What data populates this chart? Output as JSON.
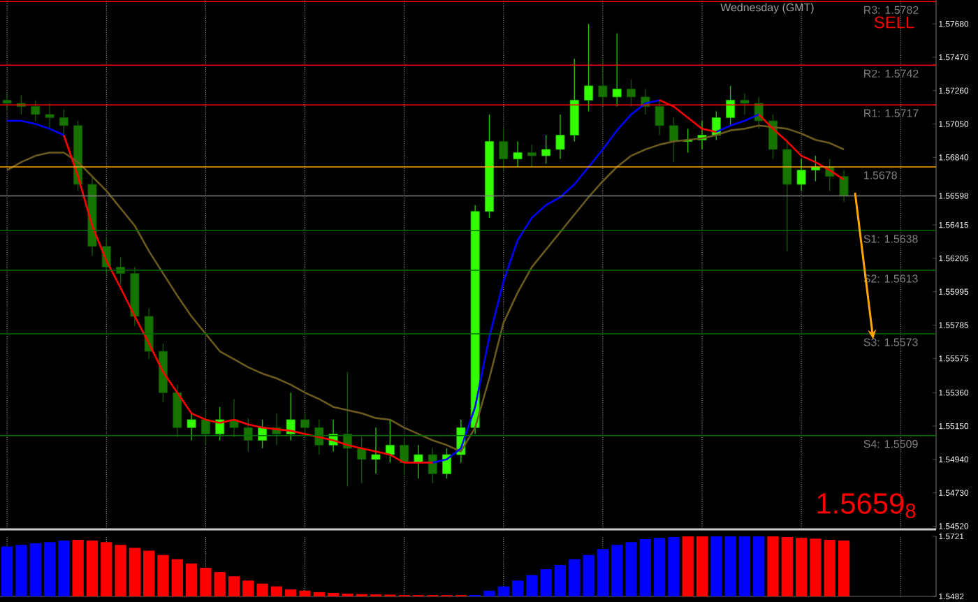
{
  "chart_data": [
    {
      "type": "candlestick",
      "categories": [
        null,
        null,
        null,
        null,
        null,
        null,
        null,
        null,
        null,
        null,
        null,
        null,
        null,
        null,
        null,
        null,
        null,
        null,
        null,
        null,
        null,
        null,
        null,
        null,
        null,
        null,
        null,
        null,
        null,
        null,
        null,
        null,
        null,
        null,
        null,
        null,
        null,
        null,
        null,
        null,
        null,
        null,
        null,
        null,
        null,
        null,
        null,
        null,
        null,
        null,
        null,
        null,
        null,
        null,
        null,
        null,
        null,
        null,
        null,
        null,
        null,
        null,
        null,
        null,
        null,
        null
      ],
      "colors": [
        "#177300",
        "#177300",
        "#177300",
        "#177300",
        "#177300",
        "#177300",
        "#177300",
        "#177300",
        "#177300",
        "#177300",
        "#177300",
        "#177300",
        "#177300",
        "#33ff00",
        "#177300",
        "#33ff00",
        "#177300",
        "#177300",
        "#33ff00",
        "#177300",
        "#33ff00",
        "#177300",
        "#177300",
        "#33ff00",
        "#177300",
        "#177300",
        "#33ff00",
        "#33ff00",
        "#177300",
        "#33ff00",
        "#177300",
        "#33ff00",
        "#33ff00",
        "#33ff00",
        "#33ff00",
        "#177300",
        "#33ff00",
        "#177300",
        "#33ff00",
        "#33ff00",
        "#33ff00",
        "#33ff00",
        "#177300",
        "#33ff00",
        "#177300",
        "#177300",
        "#177300",
        "#177300",
        "#33ff00",
        "#33ff00",
        "#33ff00",
        "#33ff00",
        "#177300",
        "#177300",
        "#177300",
        "#177300",
        "#33ff00",
        "#33ff00",
        "#177300",
        "#177300",
        null,
        null,
        null,
        null,
        null,
        null
      ],
      "ohlc": [
        [
          1.572,
          1.5724,
          1.5714,
          1.5718
        ],
        [
          1.5718,
          1.5723,
          1.5711,
          1.5716
        ],
        [
          1.5716,
          1.572,
          1.5707,
          1.5711
        ],
        [
          1.5711,
          1.5718,
          1.5702,
          1.5709
        ],
        [
          1.5709,
          1.5714,
          1.5698,
          1.5704
        ],
        [
          1.5704,
          1.5707,
          1.5663,
          1.5667
        ],
        [
          1.5667,
          1.5672,
          1.5622,
          1.5628
        ],
        [
          1.5628,
          1.5634,
          1.5611,
          1.5615
        ],
        [
          1.5615,
          1.5621,
          1.5604,
          1.5611
        ],
        [
          1.5611,
          1.5615,
          1.5578,
          1.5584
        ],
        [
          1.5584,
          1.5589,
          1.5557,
          1.5562
        ],
        [
          1.5562,
          1.5567,
          1.553,
          1.5536
        ],
        [
          1.5536,
          1.5541,
          1.5508,
          1.5514
        ],
        [
          1.5514,
          1.5523,
          1.5506,
          1.5519
        ],
        [
          1.5519,
          1.5525,
          1.5503,
          1.551
        ],
        [
          1.551,
          1.5527,
          1.5506,
          1.5519
        ],
        [
          1.5519,
          1.5532,
          1.5508,
          1.5514
        ],
        [
          1.5514,
          1.552,
          1.5499,
          1.5506
        ],
        [
          1.5506,
          1.5519,
          1.5501,
          1.5514
        ],
        [
          1.5514,
          1.5523,
          1.5503,
          1.551
        ],
        [
          1.551,
          1.5536,
          1.5506,
          1.5519
        ],
        [
          1.5519,
          1.5523,
          1.5508,
          1.5514
        ],
        [
          1.5514,
          1.5519,
          1.5497,
          1.5503
        ],
        [
          1.5503,
          1.5519,
          1.5499,
          1.551
        ],
        [
          1.551,
          1.5549,
          1.5477,
          1.5501
        ],
        [
          1.5501,
          1.5508,
          1.5479,
          1.5494
        ],
        [
          1.5494,
          1.5514,
          1.5485,
          1.5497
        ],
        [
          1.5497,
          1.5519,
          1.5492,
          1.5503
        ],
        [
          1.5503,
          1.5508,
          1.5484,
          1.5492
        ],
        [
          1.5492,
          1.5503,
          1.5482,
          1.5497
        ],
        [
          1.5497,
          1.5501,
          1.5479,
          1.5485
        ],
        [
          1.5485,
          1.5501,
          1.5482,
          1.5497
        ],
        [
          1.5497,
          1.5519,
          1.5492,
          1.5514
        ],
        [
          1.5514,
          1.5654,
          1.551,
          1.565
        ],
        [
          1.565,
          1.5711,
          1.5646,
          1.5694
        ],
        [
          1.5694,
          1.5702,
          1.5676,
          1.5683
        ],
        [
          1.5683,
          1.5694,
          1.5678,
          1.5687
        ],
        [
          1.5687,
          1.5692,
          1.5678,
          1.5685
        ],
        [
          1.5685,
          1.5698,
          1.568,
          1.5689
        ],
        [
          1.5689,
          1.5711,
          1.5683,
          1.5698
        ],
        [
          1.5698,
          1.5746,
          1.5694,
          1.572
        ],
        [
          1.572,
          1.5768,
          1.5713,
          1.5729
        ],
        [
          1.5729,
          1.5746,
          1.5716,
          1.5722
        ],
        [
          1.5722,
          1.5762,
          1.5716,
          1.5727
        ],
        [
          1.5727,
          1.5733,
          1.5716,
          1.5722
        ],
        [
          1.5722,
          1.5727,
          1.5711,
          1.5716
        ],
        [
          1.5716,
          1.572,
          1.5698,
          1.5704
        ],
        [
          1.5704,
          1.5709,
          1.5681,
          1.5694
        ],
        [
          1.5694,
          1.5702,
          1.5687,
          1.5695
        ],
        [
          1.5695,
          1.5707,
          1.5689,
          1.5698
        ],
        [
          1.5698,
          1.5713,
          1.5695,
          1.5709
        ],
        [
          1.5709,
          1.5729,
          1.5704,
          1.572
        ],
        [
          1.572,
          1.5724,
          1.5711,
          1.5718
        ],
        [
          1.5718,
          1.5722,
          1.5702,
          1.5707
        ],
        [
          1.5707,
          1.5711,
          1.5683,
          1.5689
        ],
        [
          1.5689,
          1.5694,
          1.5625,
          1.5667
        ],
        [
          1.5667,
          1.5683,
          1.5663,
          1.5676
        ],
        [
          1.5676,
          1.5685,
          1.5669,
          1.5678
        ],
        [
          1.5678,
          1.5683,
          1.5663,
          1.5672
        ],
        [
          1.5672,
          1.5676,
          1.5656,
          1.566
        ],
        null,
        null,
        null,
        null,
        null,
        null
      ],
      "series": [
        {
          "type": "line",
          "color": "#6b5a1e",
          "values": [
            1.5676,
            1.5681,
            1.5685,
            1.5687,
            1.5687,
            1.5681,
            1.5672,
            1.5663,
            1.5652,
            1.5641,
            1.5625,
            1.5611,
            1.5597,
            1.5584,
            1.5573,
            1.5562,
            1.5557,
            1.5552,
            1.5548,
            1.5545,
            1.5541,
            1.5536,
            1.5532,
            1.5527,
            1.5525,
            1.5523,
            1.552,
            1.5519,
            1.5514,
            1.551,
            1.5506,
            1.5503,
            1.5499,
            1.5514,
            1.5545,
            1.558,
            1.5599,
            1.5615,
            1.5626,
            1.5637,
            1.5648,
            1.5659,
            1.5669,
            1.5678,
            1.5685,
            1.5689,
            1.5692,
            1.5694,
            1.5695,
            1.5696,
            1.5698,
            1.5701,
            1.5702,
            1.5704,
            1.5703,
            1.5702,
            1.5699,
            1.5695,
            1.5693,
            1.5689,
            null,
            null,
            null,
            null,
            null,
            null
          ]
        },
        {
          "type": "line",
          "color": "#0000ff",
          "values": [
            1.5707,
            1.5707,
            1.5705,
            1.5702,
            1.5698,
            null,
            null,
            null,
            null,
            null,
            null,
            null,
            null,
            null,
            null,
            null,
            null,
            null,
            null,
            null,
            null,
            null,
            null,
            null,
            null,
            null,
            null,
            null,
            null,
            null,
            1.5492,
            1.5494,
            1.5501,
            1.5527,
            1.5571,
            1.5606,
            1.5632,
            1.5646,
            1.5654,
            1.5659,
            1.5667,
            1.5678,
            1.5689,
            1.5701,
            1.5711,
            1.5718,
            1.572,
            null,
            null,
            null,
            1.57,
            1.5704,
            1.5707,
            1.5711,
            null,
            null,
            null,
            null,
            null,
            null,
            null,
            null,
            null,
            null,
            null,
            null
          ]
        },
        {
          "type": "line",
          "color": "#ff0000",
          "values": [
            null,
            null,
            null,
            null,
            1.5698,
            1.5672,
            1.5641,
            1.5619,
            1.5602,
            1.5584,
            1.5567,
            1.5549,
            1.5536,
            1.5523,
            1.5519,
            1.5517,
            1.5519,
            1.5516,
            1.5514,
            1.5513,
            1.5512,
            1.551,
            1.5508,
            1.5506,
            1.5503,
            1.5501,
            1.5499,
            1.5497,
            1.5492,
            1.5492,
            1.5492,
            null,
            null,
            null,
            null,
            null,
            null,
            null,
            null,
            null,
            null,
            null,
            null,
            null,
            null,
            null,
            1.572,
            1.5716,
            1.5709,
            1.5702,
            1.57,
            null,
            null,
            1.5711,
            1.5702,
            1.5694,
            1.5685,
            1.5681,
            1.5676,
            1.567,
            null,
            null,
            null,
            null,
            null,
            null
          ]
        }
      ],
      "ylim": [
        1.545,
        1.5783
      ],
      "yticks": [
        {
          "value": 1.5768,
          "label": "1.57680"
        },
        {
          "value": 1.5747,
          "label": "1.57470"
        },
        {
          "value": 1.5726,
          "label": "1.57260"
        },
        {
          "value": 1.5705,
          "label": "1.57050"
        },
        {
          "value": 1.5684,
          "label": "1.56840"
        },
        {
          "value": 1.56598,
          "label": "1.56598"
        },
        {
          "value": 1.56415,
          "label": "1.56415"
        },
        {
          "value": 1.56205,
          "label": "1.56205"
        },
        {
          "value": 1.55995,
          "label": "1.55995"
        },
        {
          "value": 1.55785,
          "label": "1.55785"
        },
        {
          "value": 1.55575,
          "label": "1.55575"
        },
        {
          "value": 1.5536,
          "label": "1.55360"
        },
        {
          "value": 1.5515,
          "label": "1.55150"
        },
        {
          "value": 1.5494,
          "label": "1.54940"
        },
        {
          "value": 1.5473,
          "label": "1.54730"
        },
        {
          "value": 1.5452,
          "label": "1.54520"
        }
      ],
      "ref_lines": [
        {
          "axis": "y",
          "value": 1.5782,
          "label": "R3: 1.5782",
          "color": "#ff0000"
        },
        {
          "axis": "y",
          "value": 1.5742,
          "label": "R2: 1.5742",
          "color": "#ff0000"
        },
        {
          "axis": "y",
          "value": 1.5717,
          "label": "R1: 1.5717",
          "color": "#ff0000"
        },
        {
          "axis": "y",
          "value": 1.5678,
          "label": "1.5678",
          "color": "#ffa500"
        },
        {
          "axis": "y",
          "value": 1.5638,
          "label": "S1: 1.5638",
          "color": "#007000"
        },
        {
          "axis": "y",
          "value": 1.5613,
          "label": "S2: 1.5613",
          "color": "#007000"
        },
        {
          "axis": "y",
          "value": 1.5573,
          "label": "S3: 1.5573",
          "color": "#007000"
        },
        {
          "axis": "y",
          "value": 1.5509,
          "label": "S4: 1.5509",
          "color": "#007000"
        },
        {
          "axis": "y",
          "value": 1.56598,
          "color": "#808080"
        }
      ],
      "annotations": [
        "Wednesday (GMT)",
        "SELL",
        "1.5659$_{8}$"
      ],
      "grid": "x",
      "tick_labels": "y"
    },
    {
      "type": "bar",
      "categories": [
        null,
        null,
        null,
        null,
        null,
        null,
        null,
        null,
        null,
        null,
        null,
        null,
        null,
        null,
        null,
        null,
        null,
        null,
        null,
        null,
        null,
        null,
        null,
        null,
        null,
        null,
        null,
        null,
        null,
        null,
        null,
        null,
        null,
        null,
        null,
        null,
        null,
        null,
        null,
        null,
        null,
        null,
        null,
        null,
        null,
        null,
        null,
        null,
        null,
        null,
        null,
        null,
        null,
        null,
        null,
        null,
        null,
        null,
        null,
        null,
        null,
        null,
        null,
        null,
        null,
        null
      ],
      "base": [
        1.5482,
        1.5482,
        1.5482,
        1.5482,
        1.5482,
        1.5482,
        1.5482,
        1.5482,
        1.5482,
        1.5482,
        1.5482,
        1.5482,
        1.5482,
        1.5482,
        1.5482,
        1.5482,
        1.5482,
        1.5482,
        1.5482,
        1.5482,
        1.5482,
        1.5482,
        1.5482,
        1.5482,
        1.5482,
        1.5482,
        1.5482,
        1.5482,
        1.5482,
        1.5482,
        1.5482,
        1.5482,
        1.5482,
        1.5482,
        1.5482,
        1.5482,
        1.5482,
        1.5482,
        1.5482,
        1.5482,
        1.5482,
        1.5482,
        1.5482,
        1.5482,
        1.5482,
        1.5482,
        1.5482,
        1.5482,
        1.5482,
        1.5482,
        1.5482,
        1.5482,
        1.5482,
        1.5482,
        1.5482,
        1.5482,
        1.5482,
        1.5482,
        1.5482,
        1.5482,
        null,
        null,
        null,
        null,
        null,
        null
      ],
      "values": [
        0.0199,
        0.0205,
        0.0211,
        0.0216,
        0.0222,
        0.0225,
        0.0222,
        0.0216,
        0.0205,
        0.0193,
        0.0182,
        0.0165,
        0.0148,
        0.0131,
        0.0114,
        0.0097,
        0.008,
        0.0063,
        0.0051,
        0.004,
        0.0028,
        0.0023,
        0.0017,
        0.0014,
        0.0011,
        0.0009,
        0.0008,
        0.0007,
        0.0005,
        0.0005,
        0.0005,
        0.0005,
        0.0005,
        0.0006,
        0.0023,
        0.004,
        0.0063,
        0.0085,
        0.0108,
        0.0125,
        0.0148,
        0.0165,
        0.0188,
        0.0205,
        0.0216,
        0.0228,
        0.0233,
        0.0236,
        0.0239,
        0.0239,
        0.0239,
        0.0239,
        0.0239,
        0.0239,
        0.0239,
        0.0236,
        0.0233,
        0.023,
        0.0225,
        0.0222,
        null,
        null,
        null,
        null,
        null,
        null
      ],
      "colors": [
        "#0000ff",
        "#0000ff",
        "#0000ff",
        "#0000ff",
        "#0000ff",
        "#ff0000",
        "#ff0000",
        "#ff0000",
        "#ff0000",
        "#ff0000",
        "#ff0000",
        "#ff0000",
        "#ff0000",
        "#ff0000",
        "#ff0000",
        "#ff0000",
        "#ff0000",
        "#ff0000",
        "#ff0000",
        "#ff0000",
        "#ff0000",
        "#ff0000",
        "#ff0000",
        "#ff0000",
        "#ff0000",
        "#ff0000",
        "#ff0000",
        "#ff0000",
        "#ff0000",
        "#ff0000",
        "#ff0000",
        "#ff0000",
        "#ff0000",
        "#0000ff",
        "#0000ff",
        "#0000ff",
        "#0000ff",
        "#0000ff",
        "#0000ff",
        "#0000ff",
        "#0000ff",
        "#0000ff",
        "#0000ff",
        "#0000ff",
        "#0000ff",
        "#0000ff",
        "#0000ff",
        "#0000ff",
        "#ff0000",
        "#ff0000",
        "#0000ff",
        "#0000ff",
        "#0000ff",
        "#0000ff",
        "#ff0000",
        "#ff0000",
        "#ff0000",
        "#ff0000",
        "#ff0000",
        "#ff0000",
        null,
        null,
        null,
        null,
        null,
        null
      ],
      "ylim": [
        1.5482,
        1.5721
      ],
      "yticks": [
        1.5721,
        1.5482
      ],
      "grid": "x",
      "tick_labels": "y"
    }
  ]
}
